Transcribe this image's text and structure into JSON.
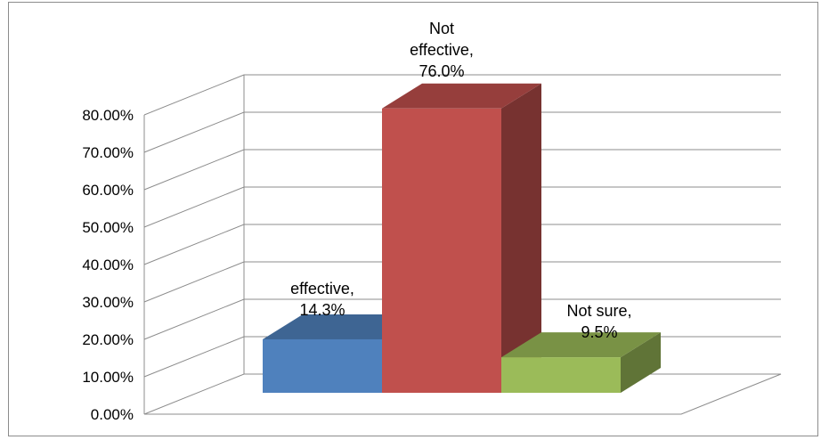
{
  "chart_data": {
    "type": "bar",
    "style": "3d-column",
    "categories": [
      "effective",
      "Not effective",
      "Not sure"
    ],
    "values": [
      14.3,
      76.0,
      9.5
    ],
    "data_labels": [
      [
        "effective,",
        "14.3%"
      ],
      [
        "Not",
        "effective,",
        "76.0%"
      ],
      [
        "Not sure,",
        "9.5%"
      ]
    ],
    "colors": [
      "#4f81bd",
      "#c0504d",
      "#9bbb59"
    ],
    "ylim": [
      0,
      80
    ],
    "yticks": [
      0,
      10,
      20,
      30,
      40,
      50,
      60,
      70,
      80
    ],
    "ytick_labels": [
      "0.00%",
      "10.00%",
      "20.00%",
      "30.00%",
      "40.00%",
      "50.00%",
      "60.00%",
      "70.00%",
      "80.00%"
    ],
    "grid": true,
    "legend": "none",
    "title": "",
    "xlabel": "",
    "ylabel": ""
  }
}
